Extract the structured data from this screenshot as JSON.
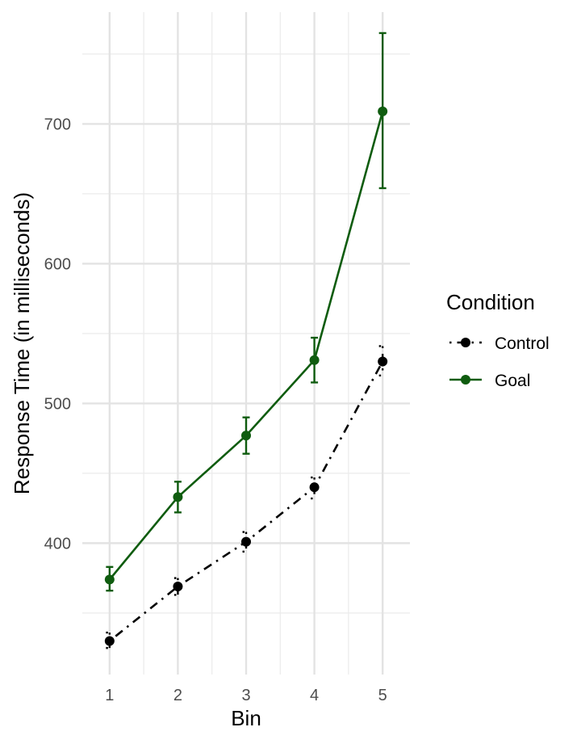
{
  "chart_data": {
    "type": "line",
    "xlabel": "Bin",
    "ylabel": "Response Time (in milliseconds)",
    "x": [
      1,
      2,
      3,
      4,
      5
    ],
    "x_tick_labels": [
      "1",
      "2",
      "3",
      "4",
      "5"
    ],
    "y_tick_labels": [
      "400",
      "500",
      "600",
      "700"
    ],
    "y_ticks": [
      400,
      500,
      600,
      700
    ],
    "y_minor_ticks": [
      350,
      450,
      550,
      650,
      750
    ],
    "xlim": [
      0.6,
      5.4
    ],
    "ylim": [
      306,
      780
    ],
    "grid": true,
    "legend": {
      "title": "Condition",
      "position": "right"
    },
    "series": [
      {
        "name": "Control",
        "color": "#000000",
        "linestyle": "dotdash",
        "values": [
          330,
          369,
          401,
          440,
          530
        ],
        "error_low": [
          325,
          363,
          394,
          432,
          520
        ],
        "error_high": [
          336,
          375,
          408,
          447,
          541
        ]
      },
      {
        "name": "Goal",
        "color": "#0f5c0f",
        "linestyle": "solid",
        "values": [
          374,
          433,
          477,
          531,
          709
        ],
        "error_low": [
          366,
          422,
          464,
          515,
          654
        ],
        "error_high": [
          383,
          444,
          490,
          547,
          765
        ]
      }
    ]
  }
}
